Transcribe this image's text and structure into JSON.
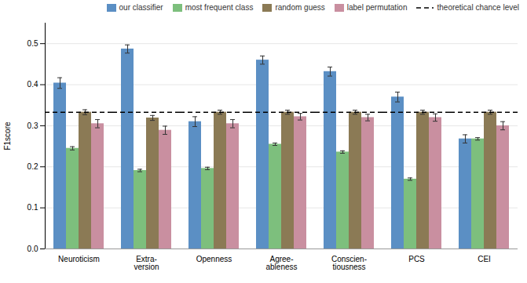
{
  "chart_data": {
    "type": "bar",
    "categories": [
      "Neuroticism",
      "Extra-\nversion",
      "Openness",
      "Agree-\nableness",
      "Conscien-\ntiousness",
      "PCS",
      "CEI"
    ],
    "series": [
      {
        "name": "our classifier",
        "color": "#5b8fc4",
        "values": [
          0.404,
          0.487,
          0.31,
          0.46,
          0.432,
          0.37,
          0.268
        ],
        "errors": [
          0.013,
          0.01,
          0.012,
          0.01,
          0.011,
          0.012,
          0.01
        ]
      },
      {
        "name": "most frequent class",
        "color": "#7dbf7d",
        "values": [
          0.245,
          0.191,
          0.196,
          0.255,
          0.236,
          0.17,
          0.268
        ],
        "errors": [
          0.004,
          0.003,
          0.003,
          0.003,
          0.003,
          0.003,
          0.003
        ]
      },
      {
        "name": "random guess",
        "color": "#8b7a55",
        "values": [
          0.333,
          0.319,
          0.333,
          0.333,
          0.333,
          0.333,
          0.333
        ],
        "errors": [
          0.006,
          0.006,
          0.005,
          0.005,
          0.005,
          0.005,
          0.005
        ]
      },
      {
        "name": "label permutation",
        "color": "#c98fa0",
        "values": [
          0.305,
          0.289,
          0.305,
          0.322,
          0.32,
          0.32,
          0.3
        ],
        "errors": [
          0.01,
          0.01,
          0.01,
          0.008,
          0.008,
          0.009,
          0.01
        ]
      },
      {
        "name": "theoretical chance level",
        "type": "hline",
        "color": "#000000",
        "line_style": "dashed",
        "value": 0.333
      }
    ],
    "ylabel": "F1score",
    "ylim": [
      0.0,
      0.55
    ],
    "yticks": [
      {
        "value": 0.0,
        "label": "0.0"
      },
      0.1,
      0.2,
      0.3,
      0.4,
      0.5
    ],
    "grid": true,
    "legend": "upper right"
  }
}
